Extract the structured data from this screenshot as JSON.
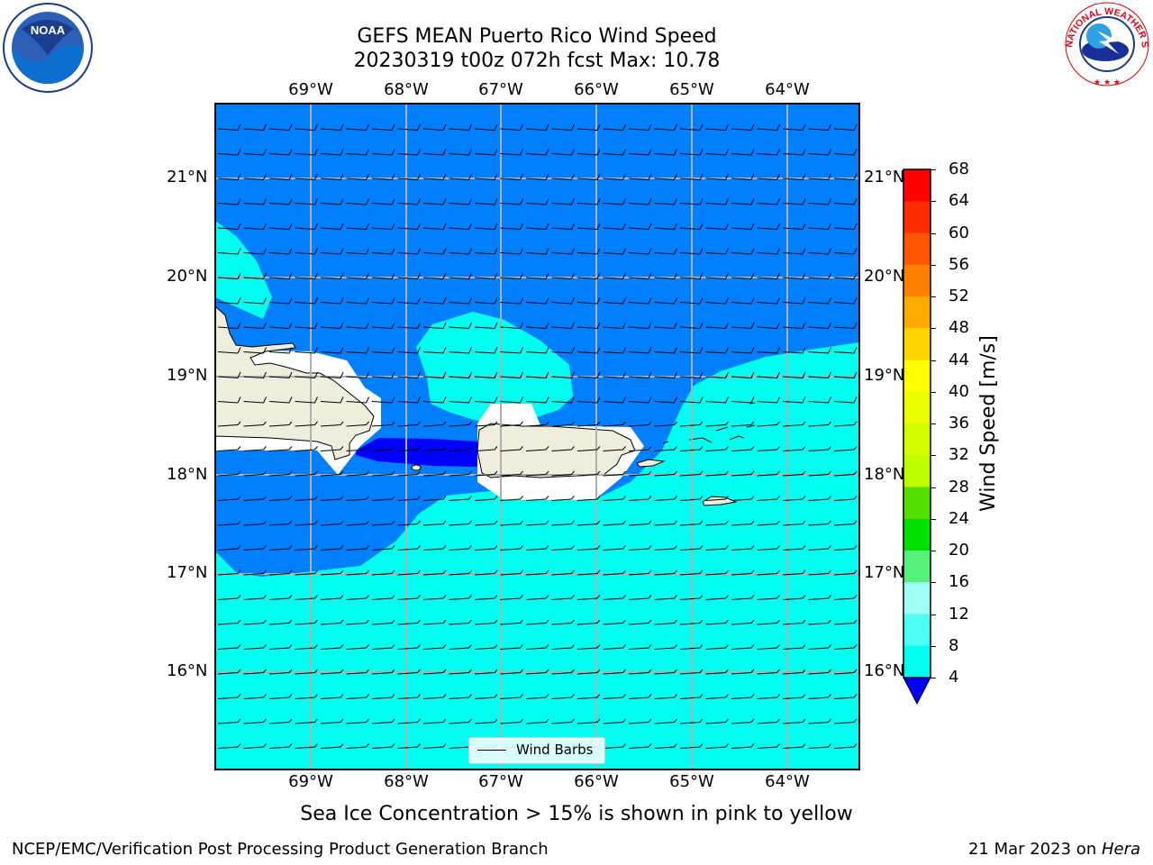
{
  "title_line1": "GEFS MEAN Puerto Rico Wind Speed",
  "title_line2": "20230319 t00z 072h fcst   Max: 10.78",
  "longitude_labels": [
    "69°W",
    "68°W",
    "67°W",
    "66°W",
    "65°W",
    "64°W"
  ],
  "latitude_labels": [
    "21°N",
    "20°N",
    "19°N",
    "18°N",
    "17°N",
    "16°N"
  ],
  "legend_label": "Wind Barbs",
  "colorbar": {
    "label": "Wind Speed [m/s]",
    "ticks": [
      "68",
      "64",
      "60",
      "56",
      "52",
      "48",
      "44",
      "40",
      "36",
      "32",
      "28",
      "24",
      "20",
      "16",
      "12",
      "8",
      "4"
    ],
    "colors": [
      "#ff0000",
      "#ff2a00",
      "#ff5500",
      "#ff8000",
      "#ffaa00",
      "#ffd500",
      "#ffff00",
      "#eaff00",
      "#d5ff00",
      "#bfff00",
      "#55e000",
      "#00e000",
      "#55f07a",
      "#9ffff6",
      "#4dfff4",
      "#00fff0",
      "#0080ff"
    ],
    "extend_color": "#0000ff"
  },
  "map_colors": {
    "calm_4_8": "#0080ff",
    "band_8_12": "#00fff0",
    "below_4": "#0000ff",
    "land": "#efeedc"
  },
  "subtitle": "Sea Ice Concentration > 15% is shown in pink to yellow",
  "footer_left": "NCEP/EMC/Verification Post Processing Product Generation Branch",
  "footer_right_prefix": "21 Mar 2023 on ",
  "footer_right_host": "Hera",
  "logos": {
    "left_text": "NOAA",
    "right_text": "NATIONAL WEATHER SERVICE"
  }
}
